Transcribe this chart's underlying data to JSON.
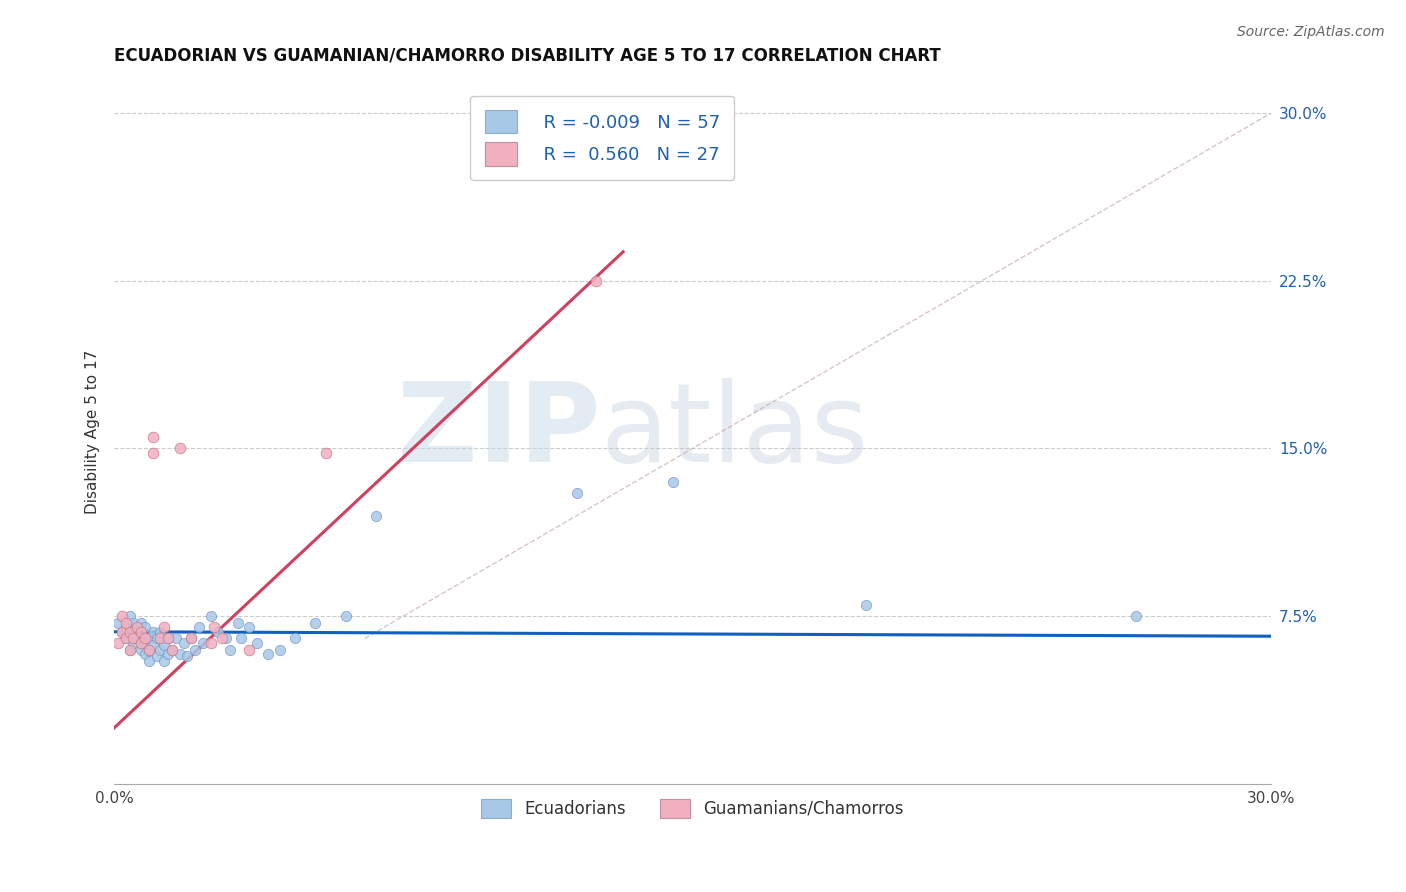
{
  "title": "ECUADORIAN VS GUAMANIAN/CHAMORRO DISABILITY AGE 5 TO 17 CORRELATION CHART",
  "source": "Source: ZipAtlas.com",
  "ylabel": "Disability Age 5 to 17",
  "xlim": [
    0.0,
    0.3
  ],
  "ylim": [
    0.0,
    0.315
  ],
  "xticks": [
    0.0,
    0.3
  ],
  "yticks_right": [
    0.075,
    0.15,
    0.225,
    0.3
  ],
  "ytick_labels_right": [
    "7.5%",
    "15.0%",
    "22.5%",
    "30.0%"
  ],
  "color_blue": "#a8c8e8",
  "color_pink": "#f0b0c0",
  "color_blue_line": "#1060c0",
  "color_pink_line": "#d04060",
  "color_diag": "#c0a0a0",
  "watermark_zip": "ZIP",
  "watermark_atlas": "atlas",
  "legend_label1": "Ecuadorians",
  "legend_label2": "Guamanians/Chamorros",
  "blue_scatter_x": [
    0.001,
    0.002,
    0.003,
    0.003,
    0.004,
    0.004,
    0.005,
    0.005,
    0.005,
    0.006,
    0.006,
    0.007,
    0.007,
    0.007,
    0.008,
    0.008,
    0.008,
    0.009,
    0.009,
    0.009,
    0.01,
    0.01,
    0.011,
    0.011,
    0.012,
    0.012,
    0.013,
    0.013,
    0.014,
    0.014,
    0.015,
    0.016,
    0.017,
    0.018,
    0.019,
    0.02,
    0.021,
    0.022,
    0.023,
    0.025,
    0.027,
    0.029,
    0.03,
    0.032,
    0.033,
    0.035,
    0.037,
    0.04,
    0.043,
    0.047,
    0.052,
    0.06,
    0.068,
    0.12,
    0.145,
    0.195,
    0.265
  ],
  "blue_scatter_y": [
    0.072,
    0.068,
    0.065,
    0.07,
    0.06,
    0.075,
    0.063,
    0.068,
    0.072,
    0.065,
    0.07,
    0.06,
    0.065,
    0.072,
    0.058,
    0.063,
    0.07,
    0.055,
    0.06,
    0.065,
    0.062,
    0.068,
    0.057,
    0.065,
    0.06,
    0.068,
    0.055,
    0.062,
    0.058,
    0.065,
    0.06,
    0.065,
    0.058,
    0.063,
    0.057,
    0.065,
    0.06,
    0.07,
    0.063,
    0.075,
    0.068,
    0.065,
    0.06,
    0.072,
    0.065,
    0.07,
    0.063,
    0.058,
    0.06,
    0.065,
    0.072,
    0.075,
    0.12,
    0.13,
    0.135,
    0.08,
    0.075
  ],
  "pink_scatter_x": [
    0.001,
    0.002,
    0.002,
    0.003,
    0.003,
    0.004,
    0.004,
    0.005,
    0.006,
    0.007,
    0.007,
    0.008,
    0.009,
    0.01,
    0.01,
    0.012,
    0.013,
    0.014,
    0.015,
    0.017,
    0.02,
    0.025,
    0.026,
    0.028,
    0.035,
    0.055,
    0.125
  ],
  "pink_scatter_y": [
    0.063,
    0.068,
    0.075,
    0.065,
    0.072,
    0.06,
    0.068,
    0.065,
    0.07,
    0.063,
    0.068,
    0.065,
    0.06,
    0.148,
    0.155,
    0.065,
    0.07,
    0.065,
    0.06,
    0.15,
    0.065,
    0.063,
    0.07,
    0.065,
    0.06,
    0.148,
    0.225
  ],
  "blue_line_x": [
    0.0,
    0.3
  ],
  "blue_line_y": [
    0.068,
    0.066
  ],
  "pink_line_x": [
    0.0,
    0.132
  ],
  "pink_line_y": [
    0.025,
    0.238
  ],
  "diag_line_x": [
    0.065,
    0.3
  ],
  "diag_line_y": [
    0.065,
    0.3
  ]
}
